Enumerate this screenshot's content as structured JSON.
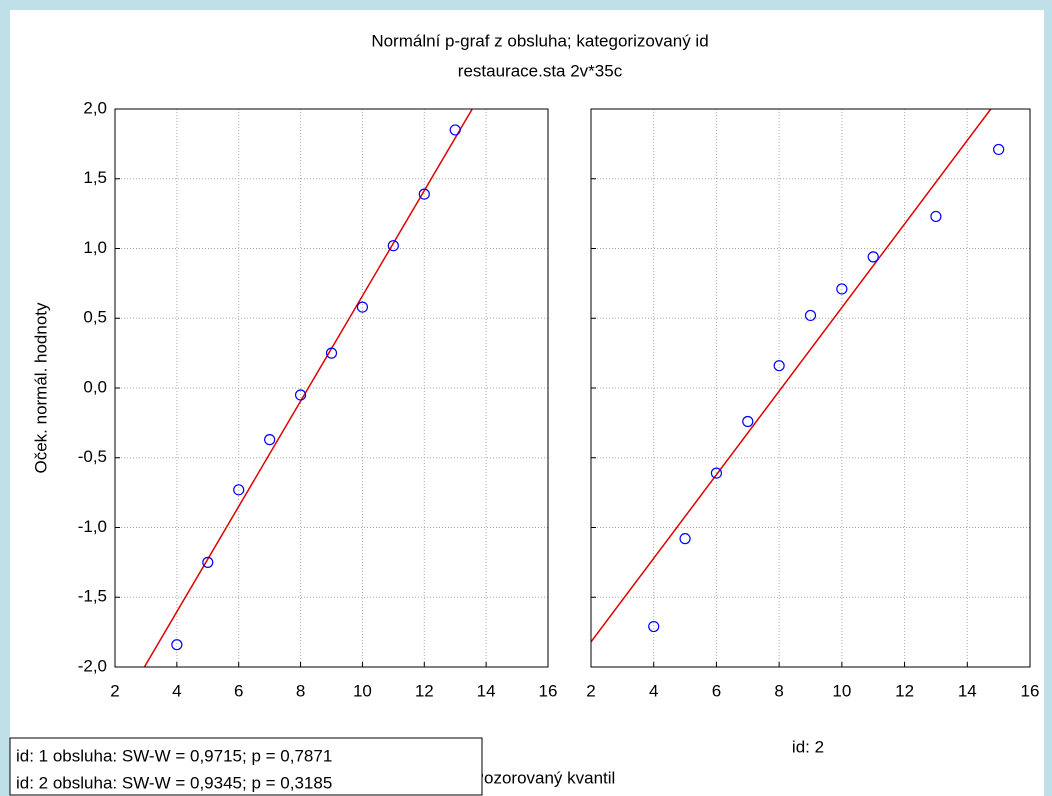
{
  "chart_data": [
    {
      "type": "scatter",
      "title": "Normální p-graf z obsluha; kategorizovaný id",
      "subtitle": "restaurace.sta 2v*35c",
      "y_label": "Oček. normál. hodnoty",
      "x_label": "Pozorovaný kvantil",
      "x": [
        4,
        5,
        6,
        7,
        8,
        9,
        10,
        11,
        12,
        13
      ],
      "values": [
        -1.84,
        -1.25,
        -0.73,
        -0.37,
        -0.05,
        0.25,
        0.58,
        1.02,
        1.39,
        1.85
      ],
      "color": "#0000ff",
      "line_color": "#e00000",
      "fit_line": {
        "x": [
          2.95,
          13.55
        ],
        "y": [
          -2,
          2
        ]
      },
      "xlim": [
        2,
        16
      ],
      "xticks": [
        2,
        4,
        6,
        8,
        10,
        12,
        14,
        16
      ],
      "ylim": [
        -2,
        2
      ],
      "yticks": [
        {
          "value": -2,
          "label": "-2,0"
        },
        {
          "value": -1.5,
          "label": "-1,5"
        },
        {
          "value": -1,
          "label": "-1,0"
        },
        {
          "value": -0.5,
          "label": "-0,5"
        },
        {
          "value": 0,
          "label": "0,0"
        },
        {
          "value": 0.5,
          "label": "0,5"
        },
        {
          "value": 1,
          "label": "1,0"
        },
        {
          "value": 1.5,
          "label": "1,5"
        },
        {
          "value": 2,
          "label": "2,0"
        }
      ],
      "grid": true
    },
    {
      "type": "scatter",
      "panel_label": "id: 2",
      "x": [
        4,
        5,
        6,
        7,
        8,
        9,
        10,
        11,
        13,
        15
      ],
      "values": [
        -1.71,
        -1.08,
        -0.61,
        -0.24,
        0.16,
        0.52,
        0.71,
        0.94,
        1.23,
        1.71
      ],
      "color": "#0000ff",
      "line_color": "#e00000",
      "fit_line": {
        "x": [
          2,
          14.75
        ],
        "y": [
          -1.82,
          2
        ]
      },
      "xlim": [
        2,
        16
      ],
      "xticks": [
        2,
        4,
        6,
        8,
        10,
        12,
        14,
        16
      ],
      "ylim": [
        -2,
        2
      ],
      "yticks": [
        -2,
        -1.5,
        -1,
        -0.5,
        0,
        0.5,
        1,
        1.5,
        2
      ],
      "grid": true
    }
  ],
  "stats_box": [
    "id: 1  obsluha:  SW-W = 0,9715; p = 0,7871",
    "id: 2  obsluha:  SW-W = 0,9345; p = 0,3185"
  ]
}
